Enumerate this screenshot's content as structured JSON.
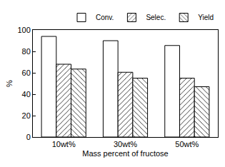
{
  "chart_data": {
    "type": "bar",
    "x_label": "Mass percent of fructose",
    "y_label": "%",
    "categories": [
      "10wt%",
      "30wt%",
      "50wt%"
    ],
    "series": [
      {
        "name": "Conv.",
        "color": "#ffffff",
        "marker": "plain",
        "values": [
          94,
          90,
          85.5
        ]
      },
      {
        "name": "Selec.",
        "color": "#ffffff",
        "marker": "hatch_forward",
        "values": [
          68,
          60.5,
          55
        ]
      },
      {
        "name": "Yield",
        "color": "#ffffff",
        "marker": "hatch_backward",
        "values": [
          63.5,
          55,
          47
        ]
      }
    ],
    "ylim": [
      0,
      100
    ],
    "yticks": [
      0,
      20,
      40,
      60,
      80,
      100
    ],
    "grid": false,
    "legend": "top"
  }
}
